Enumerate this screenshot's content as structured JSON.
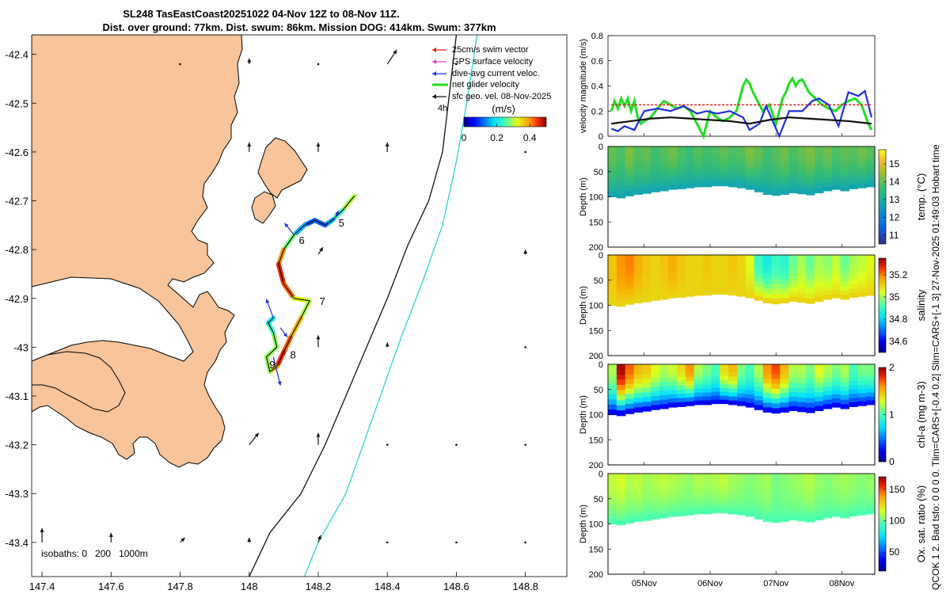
{
  "title": {
    "line1": "SL248 TasEastCoast20251022 04-Nov 12Z to 08-Nov 11Z.",
    "line2": "Dist. over ground: 77km. Dist. swum: 86km. Mission DOG: 414km. Swum: 377km"
  },
  "side_caption": "QCOK 1  2. Bad tsfo: 0  0  0  0. Tlim=CARS+[-0.4 0.2] Slim=CARS+[-1 3] 27-Nov-2025 01:49:03 Hobart time",
  "colors": {
    "land": "#f7c49b",
    "swim": "#e0201c",
    "gps": "#d946d9",
    "dive": "#1f2fe0",
    "net": "#22dd22",
    "sfc": "#111111",
    "isobath200": "#111111",
    "isobath1000": "#2bd4d4"
  },
  "chart_data": [
    {
      "type": "map",
      "id": "glider-track-map",
      "xlabel_ticks": [
        "147.4",
        "147.6",
        "147.8",
        "148",
        "148.2",
        "148.4",
        "148.6",
        "148.8"
      ],
      "ylabel_ticks": [
        "-42.4",
        "-42.5",
        "-42.6",
        "-42.7",
        "-42.8",
        "-42.9",
        "-43",
        "-43.1",
        "-43.2",
        "-43.3",
        "-43.4"
      ],
      "xlim": [
        147.37,
        148.92
      ],
      "ylim": [
        -43.47,
        -42.36
      ],
      "legend": [
        {
          "key": "swim",
          "label": "25cm/s swim vector"
        },
        {
          "key": "gps",
          "label": "GPS surface velocity"
        },
        {
          "key": "dive",
          "label": "dive-avg current veloc."
        },
        {
          "key": "net",
          "label": "net glider velocity"
        },
        {
          "key": "sfc",
          "label": "sfc geo. vel. 08-Nov-2025"
        }
      ],
      "legend_note": "4h",
      "colorbar": {
        "title": "(m/s)",
        "ticks": [
          "0",
          "0.2",
          "0.4"
        ],
        "range": [
          0,
          0.5
        ]
      },
      "isobath_text": "isobaths: 0   200   1000m",
      "track": [
        {
          "lon": 148.305,
          "lat": -42.69,
          "speed": 0.3
        },
        {
          "lon": 148.27,
          "lat": -42.72,
          "speed": 0.3
        },
        {
          "lon": 148.24,
          "lat": -42.74,
          "speed": 0.18
        },
        {
          "lon": 148.22,
          "lat": -42.75,
          "speed": 0.12
        },
        {
          "lon": 148.19,
          "lat": -42.74,
          "speed": 0.1
        },
        {
          "lon": 148.16,
          "lat": -42.75,
          "speed": 0.12
        },
        {
          "lon": 148.13,
          "lat": -42.77,
          "speed": 0.2
        },
        {
          "lon": 148.1,
          "lat": -42.8,
          "speed": 0.35
        },
        {
          "lon": 148.085,
          "lat": -42.83,
          "speed": 0.45
        },
        {
          "lon": 148.1,
          "lat": -42.87,
          "speed": 0.45
        },
        {
          "lon": 148.13,
          "lat": -42.9,
          "speed": 0.4
        },
        {
          "lon": 148.175,
          "lat": -42.905,
          "speed": 0.25
        },
        {
          "lon": 148.15,
          "lat": -42.94,
          "speed": 0.35
        },
        {
          "lon": 148.12,
          "lat": -42.98,
          "speed": 0.4
        },
        {
          "lon": 148.1,
          "lat": -43.01,
          "speed": 0.45
        },
        {
          "lon": 148.08,
          "lat": -43.04,
          "speed": 0.45
        },
        {
          "lon": 148.06,
          "lat": -43.05,
          "speed": 0.3
        },
        {
          "lon": 148.05,
          "lat": -43.02,
          "speed": 0.28
        },
        {
          "lon": 148.08,
          "lat": -43.0,
          "speed": 0.3
        },
        {
          "lon": 148.07,
          "lat": -42.97,
          "speed": 0.28
        },
        {
          "lon": 148.055,
          "lat": -42.95,
          "speed": 0.2
        },
        {
          "lon": 148.07,
          "lat": -42.94,
          "speed": 0.2
        }
      ],
      "day_labels": [
        {
          "text": "5",
          "lon": 148.245,
          "lat": -42.745
        },
        {
          "text": "6",
          "lon": 148.13,
          "lat": -42.78
        },
        {
          "text": "7",
          "lon": 148.19,
          "lat": -42.905
        },
        {
          "text": "8",
          "lon": 148.105,
          "lat": -43.015
        },
        {
          "text": "9",
          "lon": 148.045,
          "lat": -43.035
        }
      ],
      "dive_vectors": [
        {
          "lon": 148.245,
          "lat": -42.74,
          "dlon": 0.01,
          "dlat": 0.02
        },
        {
          "lon": 148.13,
          "lat": -42.77,
          "dlon": -0.02,
          "dlat": 0.025
        },
        {
          "lon": 148.07,
          "lat": -42.94,
          "dlon": -0.015,
          "dlat": 0.04
        },
        {
          "lon": 148.09,
          "lat": -42.96,
          "dlon": 0.015,
          "dlat": -0.02
        },
        {
          "lon": 148.07,
          "lat": -43.02,
          "dlon": 0.015,
          "dlat": -0.06
        }
      ],
      "sfc_vectors": [
        {
          "lon": 148.0,
          "lat": -42.42,
          "dlon": 0.0,
          "dlat": 0.012
        },
        {
          "lon": 148.2,
          "lat": -42.42,
          "dlon": 0.0,
          "dlat": 0.0
        },
        {
          "lon": 147.8,
          "lat": -42.42,
          "dlon": 0.0,
          "dlat": 0.0
        },
        {
          "lon": 148.4,
          "lat": -42.42,
          "dlon": 0.02,
          "dlat": 0.03
        },
        {
          "lon": 148.2,
          "lat": -42.6,
          "dlon": 0.0,
          "dlat": 0.02
        },
        {
          "lon": 148.4,
          "lat": -42.6,
          "dlon": 0.0,
          "dlat": 0.02
        },
        {
          "lon": 148.0,
          "lat": -42.6,
          "dlon": 0.0,
          "dlat": 0.02
        },
        {
          "lon": 148.2,
          "lat": -42.81,
          "dlon": 0.01,
          "dlat": 0.015
        },
        {
          "lon": 148.8,
          "lat": -42.81,
          "dlon": 0.0,
          "dlat": 0.01
        },
        {
          "lon": 148.2,
          "lat": -43.0,
          "dlon": 0.0,
          "dlat": 0.025
        },
        {
          "lon": 148.4,
          "lat": -43.0,
          "dlon": 0.0,
          "dlat": 0.01
        },
        {
          "lon": 148.8,
          "lat": -43.0,
          "dlon": 0.0,
          "dlat": 0.0
        },
        {
          "lon": 148.0,
          "lat": -43.2,
          "dlon": 0.02,
          "dlat": 0.025
        },
        {
          "lon": 148.2,
          "lat": -43.2,
          "dlon": 0.0,
          "dlat": 0.025
        },
        {
          "lon": 148.4,
          "lat": -43.2,
          "dlon": 0.0,
          "dlat": 0.0
        },
        {
          "lon": 148.6,
          "lat": -43.2,
          "dlon": 0.0,
          "dlat": 0.0
        },
        {
          "lon": 148.8,
          "lat": -43.2,
          "dlon": 0.0,
          "dlat": 0.0
        },
        {
          "lon": 147.4,
          "lat": -43.4,
          "dlon": 0.0,
          "dlat": 0.03
        },
        {
          "lon": 147.6,
          "lat": -43.4,
          "dlon": 0.0,
          "dlat": 0.02
        },
        {
          "lon": 147.8,
          "lat": -43.4,
          "dlon": 0.01,
          "dlat": 0.01
        },
        {
          "lon": 148.0,
          "lat": -43.4,
          "dlon": 0.0,
          "dlat": 0.01
        },
        {
          "lon": 148.2,
          "lat": -43.4,
          "dlon": 0.005,
          "dlat": 0.015
        },
        {
          "lon": 148.4,
          "lat": -43.4,
          "dlon": 0.0,
          "dlat": 0.0
        },
        {
          "lon": 148.6,
          "lat": -43.4,
          "dlon": 0.0,
          "dlat": 0.0
        },
        {
          "lon": 148.8,
          "lat": -43.4,
          "dlon": 0.0,
          "dlat": 0.0
        },
        {
          "lon": 148.8,
          "lat": -42.6,
          "dlon": 0.0,
          "dlat": 0.0
        },
        {
          "lon": 148.6,
          "lat": -42.42,
          "dlon": 0.0,
          "dlat": 0.0
        }
      ],
      "isobath200": [
        {
          "lon": 148.6,
          "lat": -42.36
        },
        {
          "lon": 148.58,
          "lat": -42.48
        },
        {
          "lon": 148.56,
          "lat": -42.6
        },
        {
          "lon": 148.52,
          "lat": -42.7
        },
        {
          "lon": 148.46,
          "lat": -42.79
        },
        {
          "lon": 148.4,
          "lat": -42.9
        },
        {
          "lon": 148.34,
          "lat": -43.0
        },
        {
          "lon": 148.28,
          "lat": -43.1
        },
        {
          "lon": 148.22,
          "lat": -43.2
        },
        {
          "lon": 148.15,
          "lat": -43.3
        },
        {
          "lon": 148.06,
          "lat": -43.38
        },
        {
          "lon": 148.0,
          "lat": -43.47
        }
      ],
      "isobath1000": [
        {
          "lon": 148.66,
          "lat": -42.36
        },
        {
          "lon": 148.63,
          "lat": -42.5
        },
        {
          "lon": 148.6,
          "lat": -42.62
        },
        {
          "lon": 148.56,
          "lat": -42.75
        },
        {
          "lon": 148.5,
          "lat": -42.87
        },
        {
          "lon": 148.44,
          "lat": -42.98
        },
        {
          "lon": 148.39,
          "lat": -43.08
        },
        {
          "lon": 148.34,
          "lat": -43.18
        },
        {
          "lon": 148.28,
          "lat": -43.3
        },
        {
          "lon": 148.2,
          "lat": -43.4
        },
        {
          "lon": 148.16,
          "lat": -43.47
        }
      ]
    },
    {
      "type": "line",
      "id": "velocity-magnitude",
      "ylabel": "velocity magnitude (m/s)",
      "ylim": [
        0,
        0.8
      ],
      "yticks": [
        "0",
        "0.2",
        "0.4",
        "0.6",
        "0.8"
      ],
      "xlim": [
        4.45,
        8.5
      ],
      "series": [
        {
          "name": "25cm/s swim vector",
          "color_key": "swim",
          "x": [
            4.5,
            8.45
          ],
          "y": [
            0.25,
            0.25
          ]
        },
        {
          "name": "sfc geo. vel.",
          "color_key": "sfc",
          "x": [
            4.5,
            4.8,
            5.1,
            5.4,
            5.7,
            6.0,
            6.3,
            6.6,
            6.9,
            7.2,
            7.5,
            7.8,
            8.1,
            8.45
          ],
          "y": [
            0.1,
            0.12,
            0.14,
            0.15,
            0.14,
            0.13,
            0.12,
            0.1,
            0.13,
            0.15,
            0.14,
            0.13,
            0.12,
            0.1
          ]
        },
        {
          "name": "dive-avg current veloc.",
          "color_key": "dive",
          "x": [
            4.5,
            4.6,
            4.7,
            4.85,
            5.0,
            5.2,
            5.4,
            5.6,
            5.8,
            5.95,
            6.1,
            6.3,
            6.5,
            6.6,
            6.75,
            6.85,
            6.95,
            7.05,
            7.2,
            7.4,
            7.55,
            7.65,
            7.8,
            7.95,
            8.1,
            8.25,
            8.35,
            8.45
          ],
          "y": [
            0.06,
            0.04,
            0.08,
            0.05,
            0.2,
            0.22,
            0.2,
            0.24,
            0.18,
            0.2,
            0.18,
            0.2,
            0.15,
            0.05,
            0.1,
            0.24,
            0.12,
            0.0,
            0.2,
            0.2,
            0.28,
            0.3,
            0.25,
            0.08,
            0.35,
            0.32,
            0.36,
            0.15
          ]
        },
        {
          "name": "net glider velocity",
          "color_key": "net",
          "x": [
            4.5,
            4.55,
            4.6,
            4.65,
            4.7,
            4.75,
            4.8,
            4.85,
            4.9,
            4.95,
            5.0,
            5.1,
            5.2,
            5.3,
            5.4,
            5.5,
            5.6,
            5.7,
            5.8,
            5.85,
            5.9,
            5.95,
            6.0,
            6.1,
            6.2,
            6.3,
            6.4,
            6.45,
            6.5,
            6.55,
            6.6,
            6.65,
            6.7,
            6.8,
            6.9,
            7.0,
            7.05,
            7.1,
            7.15,
            7.2,
            7.25,
            7.3,
            7.35,
            7.4,
            7.45,
            7.5,
            7.6,
            7.7,
            7.8,
            7.9,
            8.0,
            8.1,
            8.2,
            8.3,
            8.4,
            8.45
          ],
          "y": [
            0.2,
            0.28,
            0.22,
            0.3,
            0.24,
            0.3,
            0.2,
            0.28,
            0.15,
            0.1,
            0.12,
            0.15,
            0.22,
            0.28,
            0.25,
            0.22,
            0.24,
            0.2,
            0.1,
            0.05,
            0.0,
            0.1,
            0.2,
            0.15,
            0.12,
            0.15,
            0.2,
            0.3,
            0.4,
            0.45,
            0.42,
            0.35,
            0.3,
            0.2,
            0.25,
            0.1,
            0.2,
            0.3,
            0.35,
            0.42,
            0.46,
            0.4,
            0.44,
            0.45,
            0.4,
            0.35,
            0.3,
            0.25,
            0.22,
            0.2,
            0.25,
            0.28,
            0.3,
            0.25,
            0.1,
            0.05
          ]
        }
      ]
    },
    {
      "type": "heatmap",
      "id": "temperature-section",
      "ylabel": "Depth (m)",
      "ylim": [
        0,
        200
      ],
      "yticks": [
        "0",
        "50",
        "100",
        "150",
        "200"
      ],
      "colorbar": {
        "label": "temp. (°C)",
        "ticks": [
          "11",
          "12",
          "13",
          "14",
          "15"
        ],
        "range": [
          10.5,
          15.8
        ]
      },
      "bottom_depth": [
        100,
        102,
        98,
        95,
        93,
        90,
        88,
        85,
        84,
        82,
        80,
        80,
        78,
        78,
        80,
        82,
        85,
        90,
        95,
        97,
        95,
        92,
        94,
        96,
        92,
        88,
        85,
        88,
        84,
        82,
        80
      ],
      "profile_top": [
        14.0,
        13.8,
        14.2,
        13.9,
        14.0,
        13.7,
        13.9,
        14.1,
        13.8,
        13.6,
        13.9,
        13.7,
        13.8,
        14.0,
        13.8,
        13.9,
        14.2,
        14.0,
        13.7,
        13.9,
        14.1,
        13.8,
        14.0,
        14.2,
        13.9,
        14.1,
        13.8,
        14.0,
        13.9,
        14.1,
        13.9
      ],
      "bottom_value": 12.8
    },
    {
      "type": "heatmap",
      "id": "salinity-section",
      "ylabel": "Depth (m)",
      "ylim": [
        0,
        200
      ],
      "yticks": [
        "0",
        "50",
        "100",
        "150",
        "200"
      ],
      "colorbar": {
        "label": "salinity",
        "ticks": [
          "34.6",
          "34.8",
          "35",
          "35.2"
        ],
        "range": [
          34.5,
          35.35
        ]
      },
      "bottom_depth": [
        100,
        102,
        98,
        95,
        93,
        90,
        88,
        85,
        84,
        82,
        80,
        80,
        78,
        78,
        80,
        82,
        85,
        90,
        95,
        97,
        95,
        92,
        94,
        96,
        92,
        88,
        85,
        88,
        84,
        82,
        80
      ],
      "profile_top": [
        35.12,
        35.18,
        35.2,
        35.15,
        35.12,
        35.1,
        35.12,
        35.15,
        35.12,
        35.1,
        35.1,
        35.12,
        35.1,
        35.1,
        35.12,
        35.1,
        35.05,
        34.9,
        34.85,
        34.9,
        34.88,
        34.95,
        35.0,
        34.95,
        35.0,
        34.98,
        35.02,
        34.95,
        35.0,
        35.02,
        35.05
      ],
      "bottom_value": 35.1
    },
    {
      "type": "heatmap",
      "id": "chlorophyll-section",
      "ylabel": "Depth (m)",
      "ylim": [
        0,
        200
      ],
      "yticks": [
        "0",
        "50",
        "100",
        "150",
        "200"
      ],
      "colorbar": {
        "label": "chl-a  (mg m-3)",
        "ticks": [
          "0",
          "1",
          "2"
        ],
        "range": [
          0,
          2
        ]
      },
      "bottom_depth": [
        100,
        102,
        98,
        95,
        93,
        90,
        88,
        85,
        84,
        82,
        80,
        80,
        78,
        78,
        80,
        82,
        85,
        90,
        95,
        97,
        95,
        92,
        94,
        96,
        92,
        88,
        85,
        88,
        84,
        82,
        80
      ],
      "profile_top": [
        1.2,
        1.95,
        1.7,
        1.5,
        1.45,
        1.3,
        1.2,
        1.25,
        1.4,
        1.6,
        1.2,
        1.1,
        1.0,
        1.4,
        1.5,
        1.1,
        1.0,
        1.2,
        1.6,
        1.75,
        1.5,
        1.2,
        1.2,
        1.1,
        1.3,
        1.2,
        1.1,
        1.2,
        1.0,
        1.1,
        1.1
      ],
      "bottom_value": 0.25
    },
    {
      "type": "heatmap",
      "id": "oxygen-section",
      "ylabel": "Depth (m)",
      "ylim": [
        0,
        200
      ],
      "yticks": [
        "0",
        "50",
        "100",
        "150",
        "200"
      ],
      "colorbar": {
        "label": "Ox. sat. ratio (%)",
        "ticks": [
          "50",
          "100",
          "150"
        ],
        "range": [
          20,
          170
        ]
      },
      "bottom_depth": [
        100,
        102,
        98,
        95,
        93,
        90,
        88,
        85,
        84,
        82,
        80,
        80,
        78,
        78,
        80,
        82,
        85,
        90,
        95,
        97,
        95,
        92,
        94,
        96,
        92,
        88,
        85,
        88,
        84,
        82,
        80
      ],
      "profile_top": [
        112,
        115,
        110,
        112,
        108,
        110,
        112,
        110,
        108,
        106,
        110,
        108,
        110,
        112,
        108,
        106,
        104,
        106,
        108,
        102,
        104,
        106,
        108,
        110,
        106,
        104,
        106,
        108,
        106,
        104,
        106
      ],
      "bottom_value": 96,
      "x_ticks": [
        "05Nov",
        "06Nov",
        "07Nov",
        "08Nov"
      ],
      "x_tick_values": [
        5,
        6,
        7,
        8
      ]
    }
  ]
}
